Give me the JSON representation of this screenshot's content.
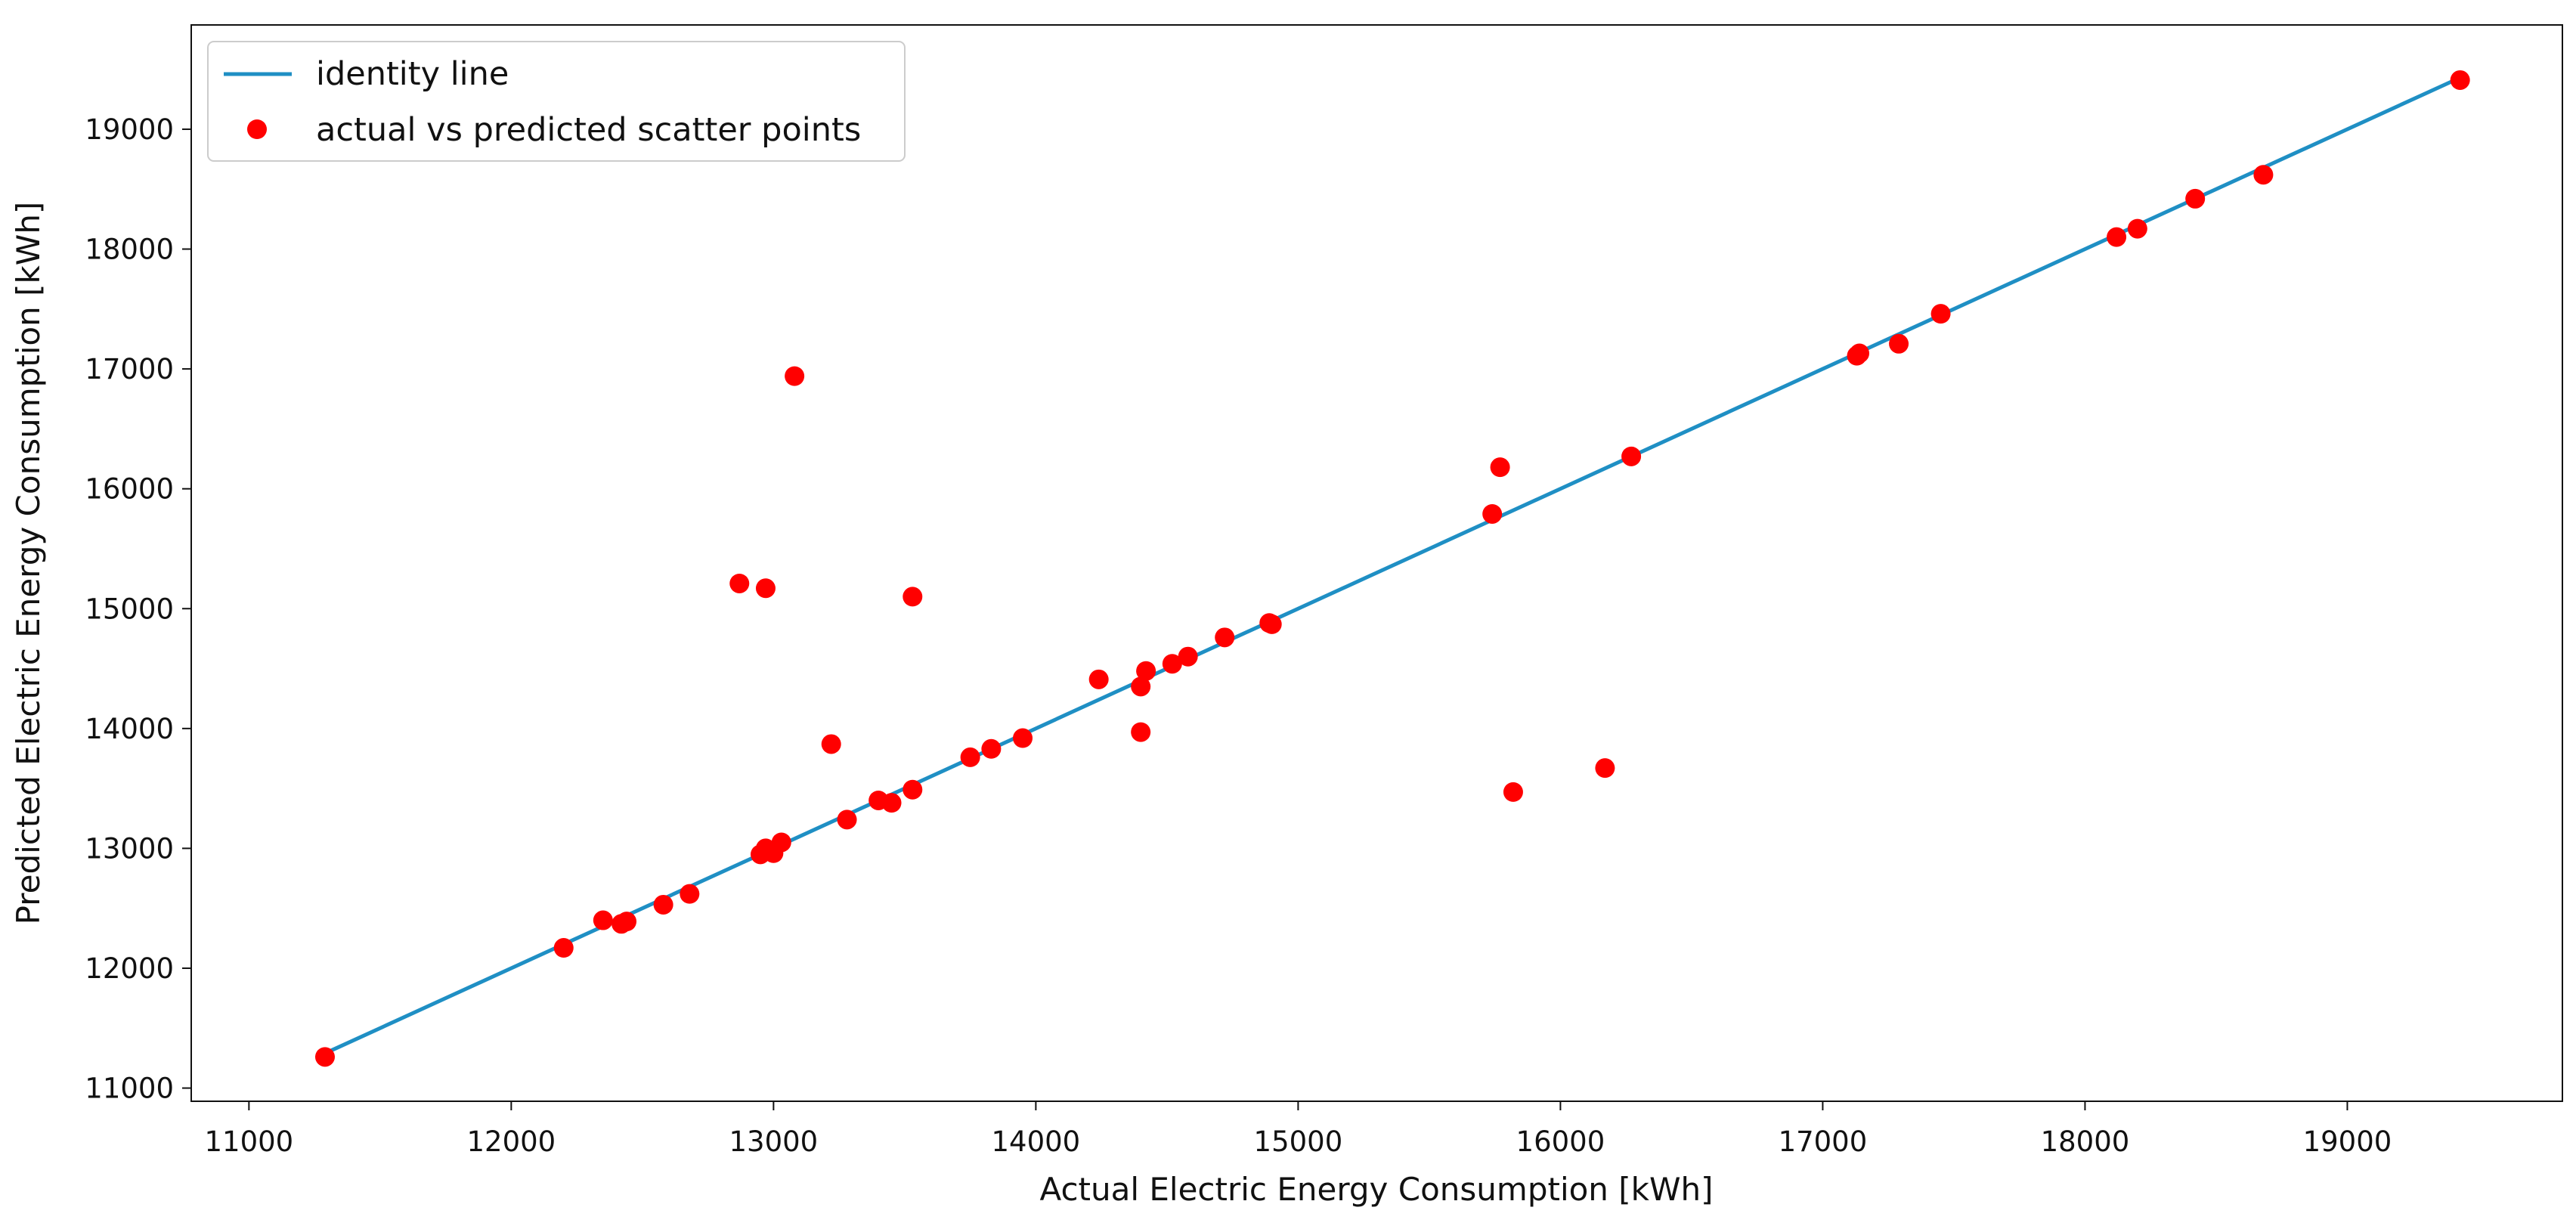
{
  "chart_data": {
    "type": "scatter",
    "title": "",
    "xlabel": "Actual Electric Energy Consumption [kWh]",
    "ylabel": "Predicted Electric Energy Consumption [kWh]",
    "xlim": [
      10780,
      19820
    ],
    "ylim": [
      10890,
      19870
    ],
    "xticks": [
      11000,
      12000,
      13000,
      14000,
      15000,
      16000,
      17000,
      18000,
      19000
    ],
    "yticks": [
      11000,
      12000,
      13000,
      14000,
      15000,
      16000,
      17000,
      18000,
      19000
    ],
    "grid": false,
    "legend": {
      "placement": "top-left",
      "entries": [
        {
          "label": "identity line",
          "marker": "line",
          "color": "#1f8fc4"
        },
        {
          "label": "actual vs predicted scatter points",
          "marker": "circle",
          "color": "#ff0000"
        }
      ]
    },
    "series": [
      {
        "name": "identity line",
        "kind": "line",
        "color": "#1f8fc4",
        "x": [
          11290,
          19430
        ],
        "y": [
          11290,
          19430
        ]
      },
      {
        "name": "actual vs predicted scatter points",
        "kind": "scatter",
        "color": "#ff0000",
        "x": [
          11290,
          12200,
          12350,
          12420,
          12440,
          12580,
          12680,
          12870,
          12950,
          12970,
          12970,
          13000,
          13030,
          13080,
          13220,
          13280,
          13400,
          13450,
          13530,
          13530,
          13750,
          13830,
          13950,
          14240,
          14400,
          14400,
          14420,
          14520,
          14580,
          14720,
          14890,
          14900,
          15740,
          15770,
          15820,
          16170,
          16270,
          17130,
          17140,
          17290,
          17450,
          18120,
          18200,
          18420,
          18680,
          19430
        ],
        "y": [
          11260,
          12170,
          12400,
          12370,
          12390,
          12530,
          12620,
          15210,
          12950,
          13000,
          15170,
          12960,
          13050,
          16940,
          13870,
          13240,
          13400,
          13380,
          13490,
          15100,
          13760,
          13830,
          13920,
          14410,
          13970,
          14350,
          14480,
          14540,
          14600,
          14760,
          14880,
          14870,
          15790,
          16180,
          13470,
          13670,
          16270,
          17110,
          17130,
          17210,
          17460,
          18100,
          18170,
          18420,
          18620,
          19410
        ]
      }
    ]
  }
}
